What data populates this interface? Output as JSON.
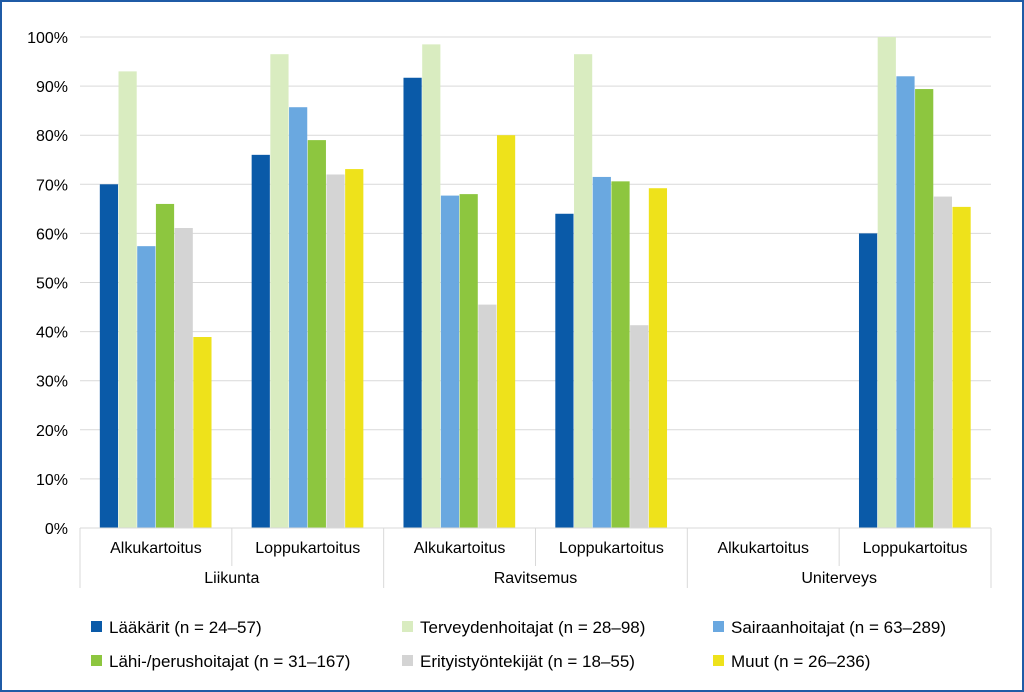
{
  "chart_data": {
    "type": "bar",
    "title": "",
    "xlabel": "",
    "ylabel": "",
    "ylim": [
      0,
      100
    ],
    "yticks": [
      "0%",
      "10%",
      "20%",
      "30%",
      "40%",
      "50%",
      "60%",
      "70%",
      "80%",
      "90%",
      "100%"
    ],
    "groups": [
      {
        "label": "Liikunta",
        "categories": [
          "Alkukartoitus",
          "Loppukartoitus"
        ]
      },
      {
        "label": "Ravitsemus",
        "categories": [
          "Alkukartoitus",
          "Loppukartoitus"
        ]
      },
      {
        "label": "Uniterveys",
        "categories": [
          "Alkukartoitus",
          "Loppukartoitus"
        ]
      }
    ],
    "series": [
      {
        "name": "Lääkärit (n = 24–57)",
        "color": "#0a5aa8",
        "values": [
          70,
          76,
          91.7,
          64,
          null,
          60
        ]
      },
      {
        "name": "Terveydenhoitajat (n = 28–98)",
        "color": "#d9ecc0",
        "values": [
          93,
          96.5,
          98.5,
          96.5,
          null,
          100
        ]
      },
      {
        "name": "Sairaanhoitajat (n = 63–289)",
        "color": "#6aa8e0",
        "values": [
          57.4,
          85.7,
          67.7,
          71.5,
          null,
          92
        ]
      },
      {
        "name": "Lähi-/perushoitajat (n = 31–167)",
        "color": "#8dc63f",
        "values": [
          66,
          79,
          68,
          70.6,
          null,
          89.4
        ]
      },
      {
        "name": "Erityistyöntekijät (n = 18–55)",
        "color": "#d4d4d4",
        "values": [
          61.1,
          72,
          45.5,
          41.3,
          null,
          67.5
        ]
      },
      {
        "name": "Muut (n = 26–236)",
        "color": "#eee21b",
        "values": [
          38.9,
          73.1,
          80,
          69.2,
          null,
          65.4
        ]
      }
    ],
    "legend": "bottom",
    "grid": true
  }
}
